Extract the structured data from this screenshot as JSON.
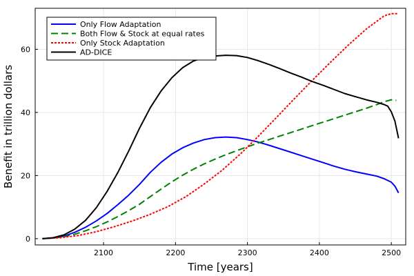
{
  "chart_data": {
    "type": "line",
    "title": "",
    "xlabel": "Time [years]",
    "ylabel": "Benefit in trillion dollars",
    "xlim": [
      2005,
      2520
    ],
    "ylim": [
      -2,
      73
    ],
    "xticks": [
      2100,
      2200,
      2300,
      2400,
      2500
    ],
    "yticks": [
      0,
      20,
      40,
      60
    ],
    "grid": true,
    "legend_position": "top-left",
    "series": [
      {
        "name": "Only Flow Adaptation",
        "color": "#0000ff",
        "dash": "solid",
        "x": [
          2015,
          2030,
          2045,
          2060,
          2075,
          2090,
          2105,
          2120,
          2135,
          2150,
          2165,
          2180,
          2195,
          2210,
          2225,
          2240,
          2255,
          2270,
          2285,
          2300,
          2315,
          2330,
          2345,
          2360,
          2375,
          2390,
          2405,
          2420,
          2435,
          2450,
          2465,
          2480,
          2490,
          2500,
          2505,
          2510
        ],
        "y": [
          0,
          0.2,
          0.8,
          2.0,
          3.6,
          5.6,
          8.0,
          10.8,
          13.8,
          17.2,
          21.0,
          24.2,
          26.8,
          28.8,
          30.3,
          31.4,
          32.0,
          32.2,
          32.0,
          31.4,
          30.6,
          29.6,
          28.5,
          27.4,
          26.3,
          25.2,
          24.1,
          23.0,
          22.0,
          21.2,
          20.5,
          19.8,
          19.0,
          17.9,
          16.6,
          14.5
        ]
      },
      {
        "name": "Both Flow & Stock at equal rates",
        "color": "#008000",
        "dash": "dashed",
        "x": [
          2015,
          2030,
          2045,
          2060,
          2075,
          2090,
          2105,
          2120,
          2135,
          2150,
          2165,
          2180,
          2195,
          2210,
          2225,
          2240,
          2255,
          2270,
          2285,
          2300,
          2315,
          2330,
          2345,
          2360,
          2375,
          2390,
          2405,
          2420,
          2435,
          2450,
          2465,
          2480,
          2490,
          2500,
          2507
        ],
        "y": [
          0,
          0.2,
          0.6,
          1.4,
          2.5,
          3.8,
          5.3,
          7.0,
          8.9,
          10.9,
          13.3,
          15.7,
          18.0,
          20.1,
          22.0,
          23.7,
          25.2,
          26.6,
          27.9,
          29.1,
          30.3,
          31.4,
          32.5,
          33.6,
          34.7,
          35.8,
          36.9,
          38.0,
          39.1,
          40.2,
          41.3,
          42.5,
          43.4,
          44.0,
          43.8
        ]
      },
      {
        "name": "Only Stock Adaptation",
        "color": "#ff0000",
        "dash": "dotted",
        "x": [
          2015,
          2040,
          2065,
          2090,
          2115,
          2140,
          2165,
          2190,
          2215,
          2240,
          2265,
          2290,
          2315,
          2340,
          2365,
          2390,
          2415,
          2440,
          2465,
          2490,
          2500,
          2510
        ],
        "y": [
          0,
          0.3,
          1.0,
          2.2,
          3.8,
          5.6,
          7.7,
          10.2,
          13.4,
          17.3,
          21.7,
          26.8,
          32.4,
          38.3,
          44.3,
          50.1,
          55.8,
          61.3,
          66.4,
          70.6,
          71.3,
          71.3
        ]
      },
      {
        "name": "AD-DICE",
        "color": "#000000",
        "dash": "solid",
        "x": [
          2015,
          2030,
          2045,
          2060,
          2075,
          2090,
          2105,
          2120,
          2135,
          2150,
          2165,
          2180,
          2195,
          2210,
          2225,
          2240,
          2255,
          2270,
          2285,
          2300,
          2315,
          2330,
          2345,
          2360,
          2375,
          2390,
          2405,
          2420,
          2435,
          2450,
          2465,
          2480,
          2490,
          2495,
          2500,
          2505,
          2510
        ],
        "y": [
          0,
          0.3,
          1.2,
          3.0,
          5.8,
          9.8,
          15.0,
          21.0,
          27.8,
          35.0,
          41.5,
          46.8,
          51.0,
          54.2,
          56.3,
          57.4,
          57.9,
          58.1,
          58.0,
          57.4,
          56.4,
          55.2,
          53.9,
          52.5,
          51.2,
          49.8,
          48.6,
          47.3,
          46.0,
          45.0,
          44.0,
          43.2,
          42.5,
          42.0,
          40.2,
          37.2,
          31.8
        ]
      }
    ]
  }
}
